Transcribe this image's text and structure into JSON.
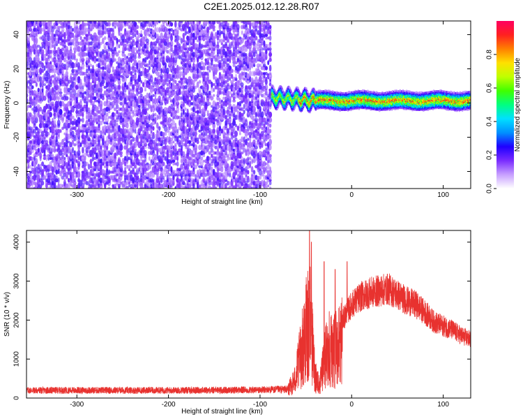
{
  "title": "C2E1.2025.012.12.28.R07",
  "chart_data": [
    {
      "type": "heatmap",
      "xlabel": "Height of straight line (km)",
      "ylabel": "Frequency (Hz)",
      "xlim": [
        -355,
        130
      ],
      "ylim": [
        -50,
        48
      ],
      "xticks": [
        -300,
        -200,
        -100,
        0,
        100
      ],
      "yticks": [
        -40,
        -20,
        0,
        20,
        40
      ],
      "colorbar": {
        "label": "Normalized spectral amplitude",
        "range": [
          0,
          1
        ],
        "ticks": [
          0.0,
          0.2,
          0.4,
          0.6,
          0.8
        ],
        "tick_labels": [
          "0.0",
          "0.2",
          "0.4",
          "0.6",
          "0.8"
        ],
        "colormap": [
          "#ffffff",
          "#c8a0ff",
          "#7a2cff",
          "#1f00ff",
          "#0090ff",
          "#00e0ff",
          "#00ff80",
          "#40ff00",
          "#c0ff00",
          "#ffe000",
          "#ff8000",
          "#ff2020",
          "#ff0060"
        ]
      },
      "regions": [
        {
          "name": "noise",
          "x_range": [
            -355,
            -88
          ],
          "freq_range": [
            -50,
            48
          ],
          "amplitude_range": [
            0.1,
            0.22
          ]
        },
        {
          "name": "signal",
          "x_range": [
            -88,
            130
          ],
          "freq_center": 1.5,
          "freq_halfwidth": 3,
          "amplitude_range": [
            0.2,
            1.0
          ]
        }
      ]
    },
    {
      "type": "line",
      "xlabel": "Height of straight line (km)",
      "ylabel": "SNR (10 * v/v)",
      "xlim": [
        -355,
        130
      ],
      "ylim": [
        0,
        4300
      ],
      "xticks": [
        -300,
        -200,
        -100,
        0,
        100
      ],
      "yticks": [
        0,
        1000,
        2000,
        3000,
        4000
      ],
      "color": "#e8322f",
      "envelope": {
        "x": [
          -355,
          -200,
          -100,
          -70,
          -62,
          -55,
          -50,
          -45,
          -40,
          -35,
          -30,
          -25,
          -20,
          -15,
          -10,
          -5,
          0,
          10,
          20,
          30,
          40,
          50,
          60,
          70,
          80,
          90,
          100,
          110,
          120,
          130
        ],
        "y": [
          220,
          220,
          230,
          250,
          600,
          1500,
          2200,
          2500,
          800,
          400,
          1200,
          1800,
          1500,
          1700,
          2000,
          2200,
          2400,
          2600,
          2700,
          2750,
          2800,
          2650,
          2500,
          2400,
          2200,
          1950,
          1850,
          1750,
          1600,
          1500
        ]
      },
      "peaks": [
        {
          "x": -46,
          "y": 4300
        },
        {
          "x": -44,
          "y": 4000
        },
        {
          "x": -30,
          "y": 3500
        },
        {
          "x": -18,
          "y": 3300
        },
        {
          "x": -5,
          "y": 3500
        }
      ]
    }
  ]
}
